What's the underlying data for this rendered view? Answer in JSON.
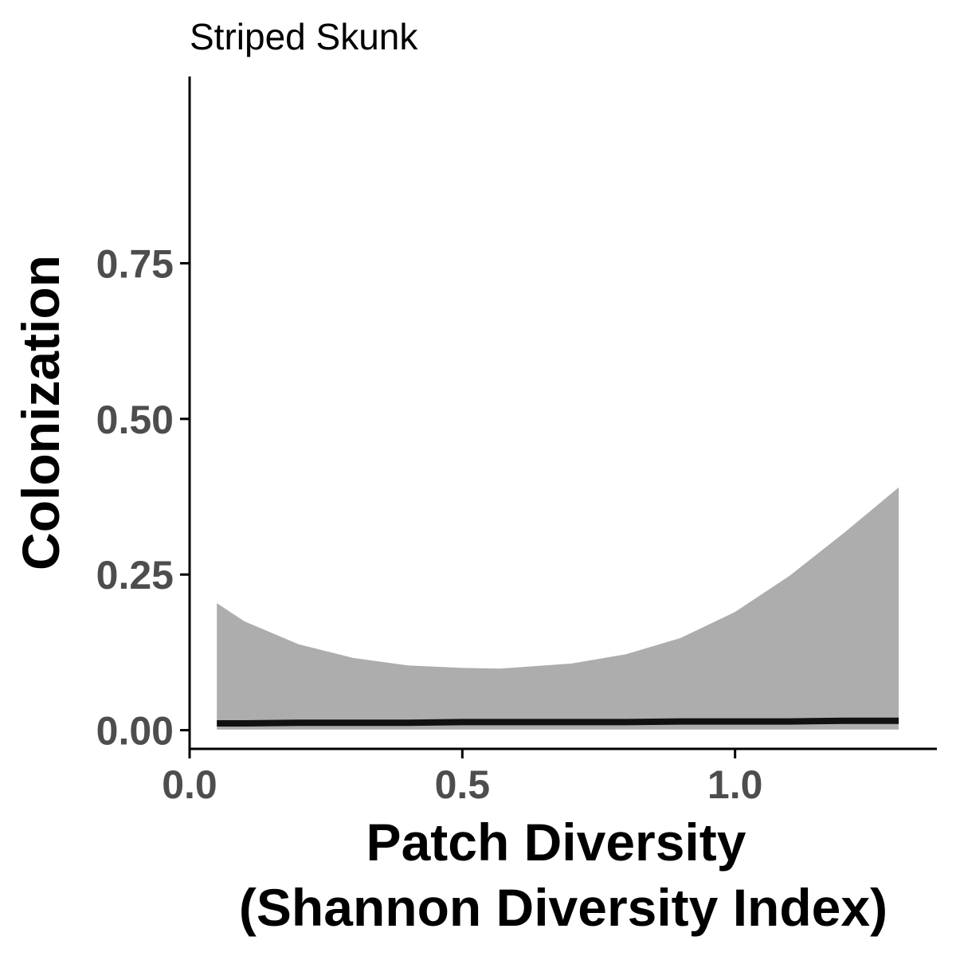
{
  "chart_data": {
    "type": "line",
    "title": "Striped Skunk",
    "xlabel_lines": [
      "Patch Diversity",
      "(Shannon Diversity Index)"
    ],
    "ylabel": "Colonization",
    "xlim": [
      0,
      1.37
    ],
    "ylim": [
      -0.03,
      1.05
    ],
    "x_ticks": [
      {
        "value": 0.0,
        "label": "0.0"
      },
      {
        "value": 0.5,
        "label": "0.5"
      },
      {
        "value": 1.0,
        "label": "1.0"
      }
    ],
    "y_ticks": [
      {
        "value": 0.0,
        "label": "0.00"
      },
      {
        "value": 0.25,
        "label": "0.25"
      },
      {
        "value": 0.5,
        "label": "0.50"
      },
      {
        "value": 0.75,
        "label": "0.75"
      }
    ],
    "grid": false,
    "legend": "none",
    "series": [
      {
        "x": [
          0.05,
          0.1,
          0.2,
          0.3,
          0.4,
          0.5,
          0.57,
          0.7,
          0.8,
          0.9,
          1.0,
          1.1,
          1.2,
          1.3
        ],
        "y": [
          0.011,
          0.011,
          0.012,
          0.012,
          0.012,
          0.013,
          0.013,
          0.013,
          0.013,
          0.014,
          0.014,
          0.014,
          0.015,
          0.015
        ],
        "upper": [
          0.204,
          0.175,
          0.138,
          0.116,
          0.104,
          0.1,
          0.099,
          0.107,
          0.122,
          0.148,
          0.19,
          0.248,
          0.317,
          0.39
        ],
        "lower": [
          0.001,
          0.001,
          0.001,
          0.001,
          0.001,
          0.001,
          0.001,
          0.001,
          0.001,
          0.001,
          0.001,
          0.001,
          0.001,
          0.001
        ]
      }
    ],
    "colors": {
      "line": "#111111",
      "ribbon": "#adadad",
      "axis": "#000000",
      "tick_label": "#4d4d4d"
    }
  }
}
